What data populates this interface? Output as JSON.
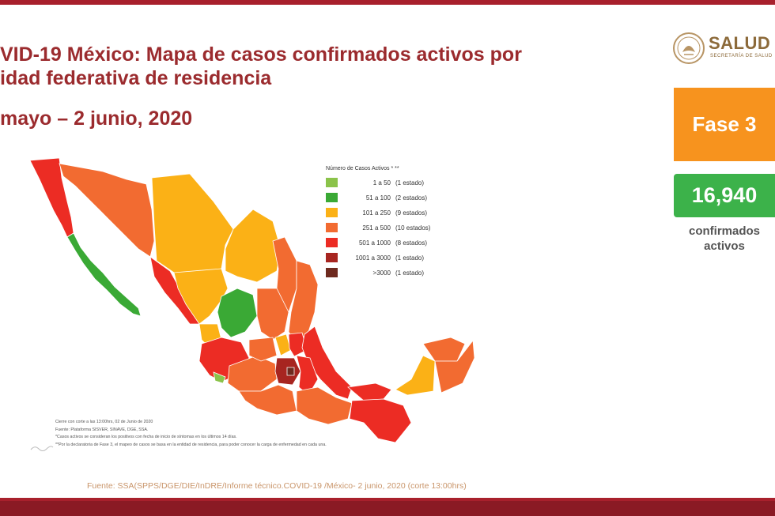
{
  "title_lines": [
    "VID-19 México: Mapa de casos confirmados activos por",
    "idad federativa de residencia"
  ],
  "date_line": "mayo – 2 junio, 2020",
  "logo": {
    "name": "SALUD",
    "subtitle": "SECRETARÍA DE SALUD",
    "icon": "eagle-seal-icon"
  },
  "phase_label": "Fase 3",
  "active_count": "16,940",
  "active_label_lines": [
    "confirmados",
    "activos"
  ],
  "legend": {
    "title": "Número de Casos Activos * **",
    "items": [
      {
        "range": "1 a 50",
        "states": "(1 estado)",
        "color": "#8bc34a"
      },
      {
        "range": "51 a 100",
        "states": "(2 estados)",
        "color": "#3aa935"
      },
      {
        "range": "101 a 250",
        "states": "(9 estados)",
        "color": "#fbb116"
      },
      {
        "range": "251 a 500",
        "states": "(10 estados)",
        "color": "#f26b31"
      },
      {
        "range": "501 a 1000",
        "states": "(8 estados)",
        "color": "#ec2c24"
      },
      {
        "range": "1001 a 3000",
        "states": "(1 estado)",
        "color": "#a72520"
      },
      {
        "range": ">3000",
        "states": "(1 estado)",
        "color": "#6e2a1f"
      }
    ]
  },
  "notes": [
    "Cierre con corte a las 13:00hrs, 02 de Junio de 2020",
    "Fuente: Plataforma SISVER, SINAVE, DGE, SSA.",
    "*Casos activos se consideran los positivos con fecha de inicio de síntomas en los últimos 14 días.",
    "**Por la declaratoria de Fase 3, el mapeo de casos se basa en la entidad de residencia, para poder conocer la carga de enfermedad en cada una."
  ],
  "source": "Fuente: SSA(SPPS/DGE/DIE/InDRE/Informe técnico.COVID-19 /México- 2 junio, 2020 (corte 13:00hrs)",
  "colors": {
    "brand_red": "#a8202c",
    "title": "#9b2b2e",
    "phase_orange": "#f7931e",
    "count_green": "#3cb24a"
  }
}
